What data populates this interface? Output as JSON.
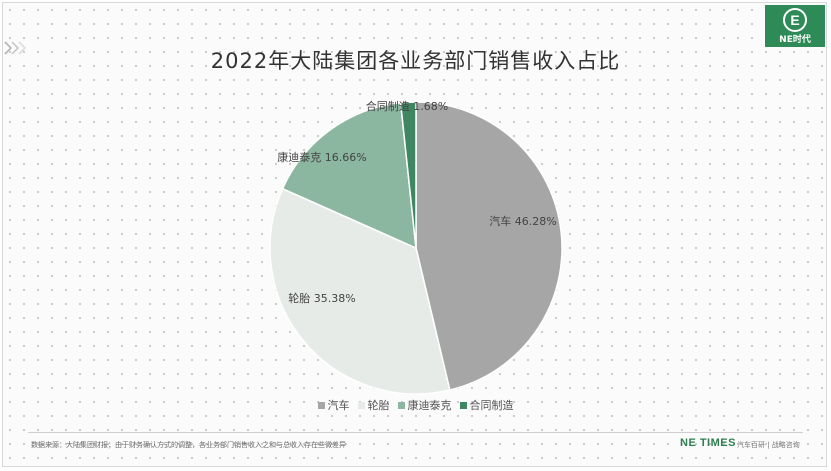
{
  "logo": {
    "mark": "E",
    "text": "NE时代"
  },
  "chart_data": {
    "type": "pie",
    "title": "2022年大陆集团各业务部门销售收入占比",
    "categories": [
      "汽车",
      "轮胎",
      "康迪泰克",
      "合同制造"
    ],
    "values": [
      46.28,
      35.38,
      16.66,
      1.68
    ],
    "unit": "%",
    "data_labels": [
      "汽车 46.28%",
      "轮胎 35.38%",
      "康迪泰克 16.66%",
      "合同制造 1.68%"
    ],
    "colors": [
      "#a6a6a6",
      "#e7ebe8",
      "#8bb6a0",
      "#3f8763"
    ],
    "legend_position": "bottom"
  },
  "footer": {
    "source": "数据来源：大陆集团财报；由于财务确认方式的调整，各业务部门销售收入之和与总收入存在些微差异",
    "brand": "NE TIMES",
    "tag": "汽车百研 | 战略咨询"
  }
}
